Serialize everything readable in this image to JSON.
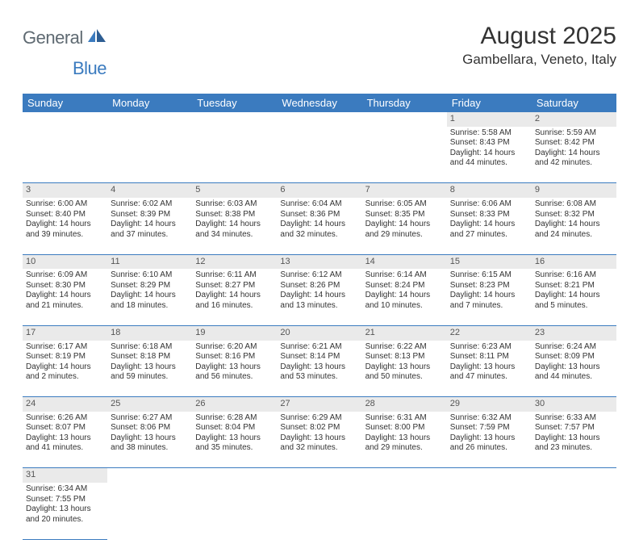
{
  "logo": {
    "part1": "General",
    "part2": "Blue"
  },
  "title": "August 2025",
  "location": "Gambellara, Veneto, Italy",
  "colors": {
    "header_bg": "#3b7bbf",
    "header_text": "#ffffff",
    "daynum_bg": "#eaeaea",
    "row_border": "#3b7bbf",
    "logo_gray": "#5f6a72",
    "logo_blue": "#3b7bbf",
    "page_bg": "#ffffff",
    "text": "#333333"
  },
  "weekdays": [
    "Sunday",
    "Monday",
    "Tuesday",
    "Wednesday",
    "Thursday",
    "Friday",
    "Saturday"
  ],
  "weeks": [
    [
      null,
      null,
      null,
      null,
      null,
      {
        "n": "1",
        "sr": "Sunrise: 5:58 AM",
        "ss": "Sunset: 8:43 PM",
        "d1": "Daylight: 14 hours",
        "d2": "and 44 minutes."
      },
      {
        "n": "2",
        "sr": "Sunrise: 5:59 AM",
        "ss": "Sunset: 8:42 PM",
        "d1": "Daylight: 14 hours",
        "d2": "and 42 minutes."
      }
    ],
    [
      {
        "n": "3",
        "sr": "Sunrise: 6:00 AM",
        "ss": "Sunset: 8:40 PM",
        "d1": "Daylight: 14 hours",
        "d2": "and 39 minutes."
      },
      {
        "n": "4",
        "sr": "Sunrise: 6:02 AM",
        "ss": "Sunset: 8:39 PM",
        "d1": "Daylight: 14 hours",
        "d2": "and 37 minutes."
      },
      {
        "n": "5",
        "sr": "Sunrise: 6:03 AM",
        "ss": "Sunset: 8:38 PM",
        "d1": "Daylight: 14 hours",
        "d2": "and 34 minutes."
      },
      {
        "n": "6",
        "sr": "Sunrise: 6:04 AM",
        "ss": "Sunset: 8:36 PM",
        "d1": "Daylight: 14 hours",
        "d2": "and 32 minutes."
      },
      {
        "n": "7",
        "sr": "Sunrise: 6:05 AM",
        "ss": "Sunset: 8:35 PM",
        "d1": "Daylight: 14 hours",
        "d2": "and 29 minutes."
      },
      {
        "n": "8",
        "sr": "Sunrise: 6:06 AM",
        "ss": "Sunset: 8:33 PM",
        "d1": "Daylight: 14 hours",
        "d2": "and 27 minutes."
      },
      {
        "n": "9",
        "sr": "Sunrise: 6:08 AM",
        "ss": "Sunset: 8:32 PM",
        "d1": "Daylight: 14 hours",
        "d2": "and 24 minutes."
      }
    ],
    [
      {
        "n": "10",
        "sr": "Sunrise: 6:09 AM",
        "ss": "Sunset: 8:30 PM",
        "d1": "Daylight: 14 hours",
        "d2": "and 21 minutes."
      },
      {
        "n": "11",
        "sr": "Sunrise: 6:10 AM",
        "ss": "Sunset: 8:29 PM",
        "d1": "Daylight: 14 hours",
        "d2": "and 18 minutes."
      },
      {
        "n": "12",
        "sr": "Sunrise: 6:11 AM",
        "ss": "Sunset: 8:27 PM",
        "d1": "Daylight: 14 hours",
        "d2": "and 16 minutes."
      },
      {
        "n": "13",
        "sr": "Sunrise: 6:12 AM",
        "ss": "Sunset: 8:26 PM",
        "d1": "Daylight: 14 hours",
        "d2": "and 13 minutes."
      },
      {
        "n": "14",
        "sr": "Sunrise: 6:14 AM",
        "ss": "Sunset: 8:24 PM",
        "d1": "Daylight: 14 hours",
        "d2": "and 10 minutes."
      },
      {
        "n": "15",
        "sr": "Sunrise: 6:15 AM",
        "ss": "Sunset: 8:23 PM",
        "d1": "Daylight: 14 hours",
        "d2": "and 7 minutes."
      },
      {
        "n": "16",
        "sr": "Sunrise: 6:16 AM",
        "ss": "Sunset: 8:21 PM",
        "d1": "Daylight: 14 hours",
        "d2": "and 5 minutes."
      }
    ],
    [
      {
        "n": "17",
        "sr": "Sunrise: 6:17 AM",
        "ss": "Sunset: 8:19 PM",
        "d1": "Daylight: 14 hours",
        "d2": "and 2 minutes."
      },
      {
        "n": "18",
        "sr": "Sunrise: 6:18 AM",
        "ss": "Sunset: 8:18 PM",
        "d1": "Daylight: 13 hours",
        "d2": "and 59 minutes."
      },
      {
        "n": "19",
        "sr": "Sunrise: 6:20 AM",
        "ss": "Sunset: 8:16 PM",
        "d1": "Daylight: 13 hours",
        "d2": "and 56 minutes."
      },
      {
        "n": "20",
        "sr": "Sunrise: 6:21 AM",
        "ss": "Sunset: 8:14 PM",
        "d1": "Daylight: 13 hours",
        "d2": "and 53 minutes."
      },
      {
        "n": "21",
        "sr": "Sunrise: 6:22 AM",
        "ss": "Sunset: 8:13 PM",
        "d1": "Daylight: 13 hours",
        "d2": "and 50 minutes."
      },
      {
        "n": "22",
        "sr": "Sunrise: 6:23 AM",
        "ss": "Sunset: 8:11 PM",
        "d1": "Daylight: 13 hours",
        "d2": "and 47 minutes."
      },
      {
        "n": "23",
        "sr": "Sunrise: 6:24 AM",
        "ss": "Sunset: 8:09 PM",
        "d1": "Daylight: 13 hours",
        "d2": "and 44 minutes."
      }
    ],
    [
      {
        "n": "24",
        "sr": "Sunrise: 6:26 AM",
        "ss": "Sunset: 8:07 PM",
        "d1": "Daylight: 13 hours",
        "d2": "and 41 minutes."
      },
      {
        "n": "25",
        "sr": "Sunrise: 6:27 AM",
        "ss": "Sunset: 8:06 PM",
        "d1": "Daylight: 13 hours",
        "d2": "and 38 minutes."
      },
      {
        "n": "26",
        "sr": "Sunrise: 6:28 AM",
        "ss": "Sunset: 8:04 PM",
        "d1": "Daylight: 13 hours",
        "d2": "and 35 minutes."
      },
      {
        "n": "27",
        "sr": "Sunrise: 6:29 AM",
        "ss": "Sunset: 8:02 PM",
        "d1": "Daylight: 13 hours",
        "d2": "and 32 minutes."
      },
      {
        "n": "28",
        "sr": "Sunrise: 6:31 AM",
        "ss": "Sunset: 8:00 PM",
        "d1": "Daylight: 13 hours",
        "d2": "and 29 minutes."
      },
      {
        "n": "29",
        "sr": "Sunrise: 6:32 AM",
        "ss": "Sunset: 7:59 PM",
        "d1": "Daylight: 13 hours",
        "d2": "and 26 minutes."
      },
      {
        "n": "30",
        "sr": "Sunrise: 6:33 AM",
        "ss": "Sunset: 7:57 PM",
        "d1": "Daylight: 13 hours",
        "d2": "and 23 minutes."
      }
    ],
    [
      {
        "n": "31",
        "sr": "Sunrise: 6:34 AM",
        "ss": "Sunset: 7:55 PM",
        "d1": "Daylight: 13 hours",
        "d2": "and 20 minutes."
      },
      null,
      null,
      null,
      null,
      null,
      null
    ]
  ]
}
